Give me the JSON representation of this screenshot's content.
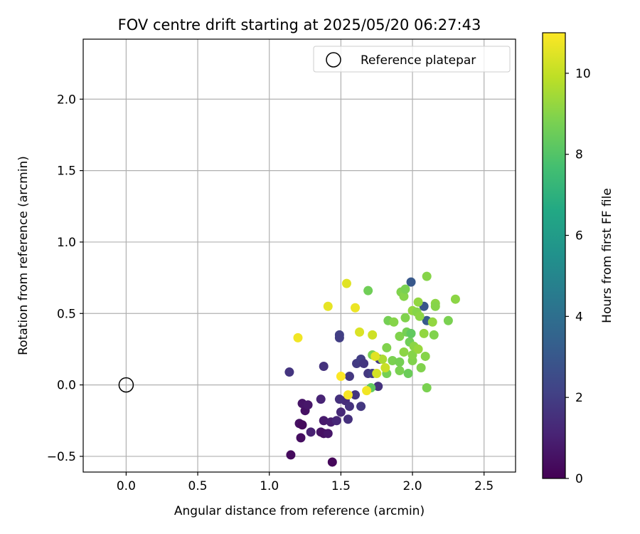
{
  "chart_data": {
    "type": "scatter",
    "title": "FOV centre drift starting at 2025/05/20 06:27:43",
    "xlabel": "Angular distance from reference (arcmin)",
    "ylabel": "Rotation from reference (arcmin)",
    "xlim": [
      -0.3,
      2.72
    ],
    "ylim": [
      -0.61,
      2.42
    ],
    "xticks": [
      "0.0",
      "0.5",
      "1.0",
      "1.5",
      "2.0",
      "2.5"
    ],
    "xtick_values": [
      0.0,
      0.5,
      1.0,
      1.5,
      2.0,
      2.5
    ],
    "yticks": [
      "−0.5",
      "0.0",
      "0.5",
      "1.0",
      "1.5",
      "2.0"
    ],
    "ytick_values": [
      -0.5,
      0.0,
      0.5,
      1.0,
      1.5,
      2.0
    ],
    "grid": true,
    "legend": {
      "placement": "top-right",
      "entries": [
        "Reference platepar"
      ]
    },
    "reference_point": {
      "x": 0.0,
      "y": 0.0
    },
    "colorbar": {
      "label": "Hours from first FF file",
      "range": [
        0,
        11
      ],
      "ticks": [
        "0",
        "2",
        "4",
        "6",
        "8",
        "10"
      ],
      "tick_values": [
        0,
        2,
        4,
        6,
        8,
        10
      ],
      "colormap": "viridis"
    },
    "series": [
      {
        "points": [
          {
            "x": 1.44,
            "y": -0.54,
            "h": 0.2
          },
          {
            "x": 1.15,
            "y": -0.49,
            "h": 0.3
          },
          {
            "x": 1.22,
            "y": -0.37,
            "h": 0.4
          },
          {
            "x": 1.21,
            "y": -0.27,
            "h": 0.5
          },
          {
            "x": 1.23,
            "y": -0.28,
            "h": 0.3
          },
          {
            "x": 1.25,
            "y": -0.18,
            "h": 0.5
          },
          {
            "x": 1.23,
            "y": -0.13,
            "h": 0.6
          },
          {
            "x": 1.27,
            "y": -0.14,
            "h": 0.7
          },
          {
            "x": 1.36,
            "y": -0.33,
            "h": 0.6
          },
          {
            "x": 1.38,
            "y": -0.34,
            "h": 0.5
          },
          {
            "x": 1.41,
            "y": -0.34,
            "h": 0.7
          },
          {
            "x": 1.38,
            "y": -0.25,
            "h": 0.8
          },
          {
            "x": 1.43,
            "y": -0.26,
            "h": 0.9
          },
          {
            "x": 1.29,
            "y": -0.33,
            "h": 1.0
          },
          {
            "x": 1.36,
            "y": -0.1,
            "h": 1.1
          },
          {
            "x": 1.47,
            "y": -0.25,
            "h": 1.2
          },
          {
            "x": 1.5,
            "y": -0.19,
            "h": 1.3
          },
          {
            "x": 1.53,
            "y": -0.11,
            "h": 1.4
          },
          {
            "x": 1.49,
            "y": -0.1,
            "h": 1.5
          },
          {
            "x": 1.56,
            "y": -0.15,
            "h": 1.6
          },
          {
            "x": 1.55,
            "y": -0.24,
            "h": 1.5
          },
          {
            "x": 1.6,
            "y": -0.07,
            "h": 1.7
          },
          {
            "x": 1.64,
            "y": -0.15,
            "h": 1.8
          },
          {
            "x": 1.76,
            "y": -0.01,
            "h": 1.6
          },
          {
            "x": 1.14,
            "y": 0.09,
            "h": 1.7
          },
          {
            "x": 1.38,
            "y": 0.13,
            "h": 1.6
          },
          {
            "x": 1.56,
            "y": 0.06,
            "h": 1.8
          },
          {
            "x": 1.61,
            "y": 0.15,
            "h": 1.9
          },
          {
            "x": 1.64,
            "y": 0.18,
            "h": 2.0
          },
          {
            "x": 1.66,
            "y": 0.15,
            "h": 1.7
          },
          {
            "x": 1.69,
            "y": 0.08,
            "h": 1.8
          },
          {
            "x": 1.72,
            "y": 0.08,
            "h": 2.0
          },
          {
            "x": 1.77,
            "y": 0.18,
            "h": 1.9
          },
          {
            "x": 1.49,
            "y": 0.35,
            "h": 2.1
          },
          {
            "x": 1.49,
            "y": 0.33,
            "h": 2.0
          },
          {
            "x": 1.99,
            "y": 0.72,
            "h": 3.0
          },
          {
            "x": 2.08,
            "y": 0.55,
            "h": 2.9
          },
          {
            "x": 2.1,
            "y": 0.45,
            "h": 3.1
          },
          {
            "x": 1.71,
            "y": -0.02,
            "h": 8.3
          },
          {
            "x": 1.69,
            "y": 0.66,
            "h": 8.6
          },
          {
            "x": 1.72,
            "y": 0.21,
            "h": 8.8
          },
          {
            "x": 1.82,
            "y": 0.08,
            "h": 8.7
          },
          {
            "x": 1.82,
            "y": 0.26,
            "h": 8.9
          },
          {
            "x": 1.83,
            "y": 0.45,
            "h": 8.7
          },
          {
            "x": 1.86,
            "y": 0.17,
            "h": 8.8
          },
          {
            "x": 1.87,
            "y": 0.44,
            "h": 9.0
          },
          {
            "x": 1.91,
            "y": 0.34,
            "h": 8.9
          },
          {
            "x": 1.91,
            "y": 0.16,
            "h": 8.7
          },
          {
            "x": 1.91,
            "y": 0.1,
            "h": 8.8
          },
          {
            "x": 1.92,
            "y": 0.65,
            "h": 8.9
          },
          {
            "x": 1.94,
            "y": 0.62,
            "h": 9.0
          },
          {
            "x": 1.95,
            "y": 0.67,
            "h": 8.8
          },
          {
            "x": 1.94,
            "y": 0.23,
            "h": 9.1
          },
          {
            "x": 1.95,
            "y": 0.47,
            "h": 8.9
          },
          {
            "x": 1.96,
            "y": 0.37,
            "h": 8.7
          },
          {
            "x": 1.97,
            "y": 0.08,
            "h": 8.5
          },
          {
            "x": 1.98,
            "y": 0.3,
            "h": 8.6
          },
          {
            "x": 1.99,
            "y": 0.36,
            "h": 8.3
          },
          {
            "x": 2.0,
            "y": 0.17,
            "h": 8.9
          },
          {
            "x": 2.0,
            "y": 0.21,
            "h": 9.0
          },
          {
            "x": 2.0,
            "y": 0.52,
            "h": 9.2
          },
          {
            "x": 2.01,
            "y": 0.27,
            "h": 9.1
          },
          {
            "x": 2.03,
            "y": 0.51,
            "h": 9.0
          },
          {
            "x": 2.04,
            "y": 0.58,
            "h": 9.2
          },
          {
            "x": 2.04,
            "y": 0.25,
            "h": 9.3
          },
          {
            "x": 2.05,
            "y": 0.48,
            "h": 9.1
          },
          {
            "x": 2.06,
            "y": 0.12,
            "h": 8.9
          },
          {
            "x": 2.08,
            "y": 0.36,
            "h": 9.2
          },
          {
            "x": 2.09,
            "y": 0.2,
            "h": 9.0
          },
          {
            "x": 2.1,
            "y": -0.02,
            "h": 8.8
          },
          {
            "x": 2.1,
            "y": 0.76,
            "h": 9.0
          },
          {
            "x": 2.14,
            "y": 0.44,
            "h": 9.2
          },
          {
            "x": 2.15,
            "y": 0.35,
            "h": 8.9
          },
          {
            "x": 2.16,
            "y": 0.57,
            "h": 9.1
          },
          {
            "x": 2.16,
            "y": 0.55,
            "h": 9.0
          },
          {
            "x": 2.25,
            "y": 0.45,
            "h": 8.8
          },
          {
            "x": 2.3,
            "y": 0.6,
            "h": 9.1
          },
          {
            "x": 1.79,
            "y": 0.18,
            "h": 9.6
          },
          {
            "x": 1.2,
            "y": 0.33,
            "h": 10.8
          },
          {
            "x": 1.41,
            "y": 0.55,
            "h": 10.6
          },
          {
            "x": 1.5,
            "y": 0.06,
            "h": 11.0
          },
          {
            "x": 1.54,
            "y": 0.71,
            "h": 10.5
          },
          {
            "x": 1.55,
            "y": -0.07,
            "h": 10.9
          },
          {
            "x": 1.6,
            "y": 0.54,
            "h": 10.7
          },
          {
            "x": 1.63,
            "y": 0.37,
            "h": 10.4
          },
          {
            "x": 1.68,
            "y": -0.04,
            "h": 10.8
          },
          {
            "x": 1.72,
            "y": 0.35,
            "h": 10.2
          },
          {
            "x": 1.74,
            "y": 0.2,
            "h": 10.5
          },
          {
            "x": 1.75,
            "y": 0.08,
            "h": 10.3
          },
          {
            "x": 1.81,
            "y": 0.12,
            "h": 10.1
          }
        ]
      }
    ]
  }
}
